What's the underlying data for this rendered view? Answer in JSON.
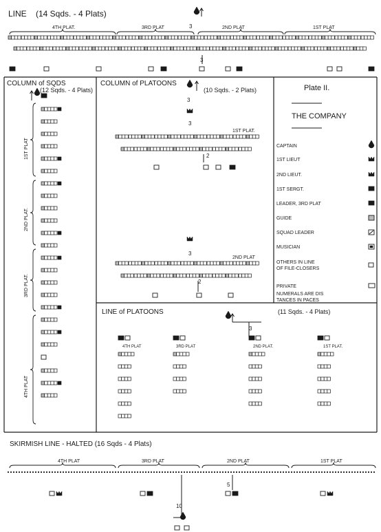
{
  "sections": {
    "line": {
      "title": "LINE",
      "count": "(14 Sqds. - 4 Plats)",
      "platoons": [
        "4TH PLAT.",
        "3RD PLAT",
        "2ND PLAT",
        "1ST PLAT"
      ],
      "distance": "3"
    },
    "column_sqds": {
      "title": "COLUMN of SQDS",
      "count": "(12 Sqds. - 4 Plats)",
      "platoons": [
        "1ST PLAT",
        "2ND PLAT.",
        "3RD PLAT.",
        "4TH PLAT"
      ]
    },
    "column_platoons": {
      "title": "COLUMN of PLATOONS",
      "count": "(10 Sqds. - 2 Plats)",
      "plat1": "1ST PLAT.",
      "plat2": "2ND PLAT",
      "distances": [
        "3",
        "3",
        "2",
        "3",
        "2"
      ]
    },
    "line_platoons": {
      "title": "LINE of PLATOONS",
      "count": "(11 Sqds. - 4 Plats)",
      "platoons": [
        "4TH PLAT",
        "3RD PLAT",
        "2ND PLAT.",
        "1ST PLAT."
      ],
      "distance": "3"
    },
    "skirmish": {
      "title": "SKIRMISH LINE - HALTED (16 Sqds - 4 Plats)",
      "platoons": [
        "4TH PLAT",
        "3RD PLAT",
        "2ND PLAT",
        "1ST PLAT"
      ],
      "distances": [
        "5",
        "10"
      ]
    }
  },
  "legend": {
    "plate": "Plate II.",
    "title": "THE COMPANY",
    "items": [
      {
        "label": "CAPTAIN",
        "icon": "captain-icon"
      },
      {
        "label": "1ST LIEUT",
        "icon": "first-lieut-icon"
      },
      {
        "label": "2ND LIEUT.",
        "icon": "second-lieut-icon"
      },
      {
        "label": "1ST SERGT.",
        "icon": "first-sergt-icon"
      },
      {
        "label": "LEADER, 3RD PLAT",
        "icon": "leader-icon"
      },
      {
        "label": "GUIDE",
        "icon": "guide-icon"
      },
      {
        "label": "SQUAD LEADER",
        "icon": "squad-leader-icon"
      },
      {
        "label": "MUSICIAN",
        "icon": "musician-icon"
      },
      {
        "label": "OTHERS IN LINE OF FILE-CLOSERS",
        "icon": "file-closer-icon"
      },
      {
        "label": "PRIVATE",
        "icon": "private-icon"
      }
    ],
    "note": "NUMERALS ARE DISTANCES IN PACES"
  },
  "colors": {
    "ink": "#1a1a1a",
    "paper": "#ffffff"
  }
}
